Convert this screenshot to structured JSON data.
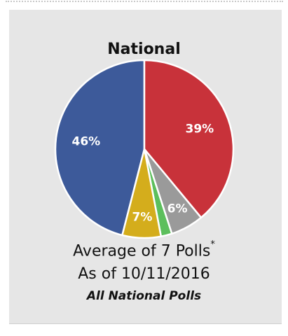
{
  "chart_data": {
    "type": "pie",
    "title": "National",
    "slices": [
      {
        "value": 46,
        "label": "46%",
        "color": "#3d5a9a"
      },
      {
        "value": 39,
        "label": "39%",
        "color": "#c8323a"
      },
      {
        "value": 6,
        "label": "6%",
        "color": "#9a9a9a"
      },
      {
        "value": 2,
        "label": "",
        "color": "#5cbf5c"
      },
      {
        "value": 7,
        "label": "7%",
        "color": "#d4ad1c"
      }
    ],
    "legend": "none"
  },
  "caption": {
    "line1": "Average of 7 Polls",
    "line1_mark": "*",
    "line2": "As of 10/11/2016",
    "line3": "All National Polls"
  }
}
